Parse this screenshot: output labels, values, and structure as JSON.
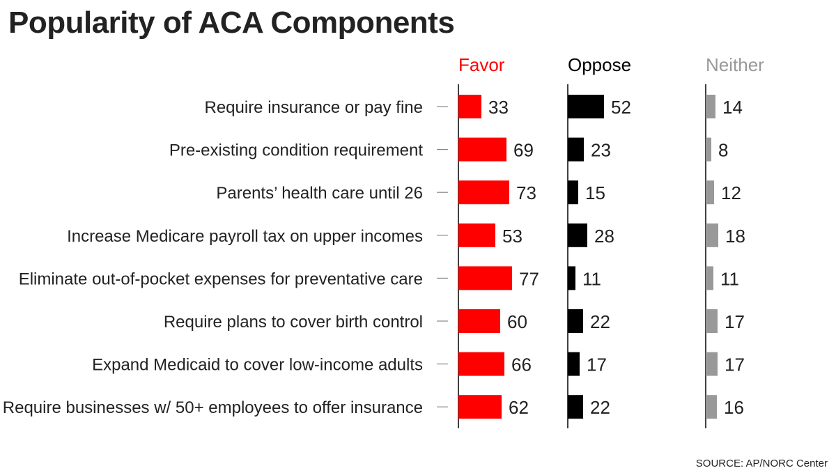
{
  "title": "Popularity of ACA Components",
  "source": "SOURCE: AP/NORC Center",
  "colors": {
    "favor": "#ff0000",
    "oppose": "#000000",
    "neither": "#999999",
    "text": "#222222",
    "tick": "#888888"
  },
  "chart_data": {
    "type": "bar",
    "title": "Popularity of ACA Components",
    "categories": [
      "Require insurance or pay fine",
      "Pre-existing condition requirement",
      "Parents’ health care until 26",
      "Increase Medicare payroll tax on upper incomes",
      "Eliminate out-of-pocket expenses for preventative care",
      "Require plans to cover birth control",
      "Expand Medicaid to cover low-income adults",
      "Require businesses w/ 50+ employees to offer insurance"
    ],
    "series": [
      {
        "name": "Favor",
        "color": "#ff0000",
        "values": [
          33,
          69,
          73,
          53,
          77,
          60,
          66,
          62
        ]
      },
      {
        "name": "Oppose",
        "color": "#000000",
        "values": [
          52,
          23,
          15,
          28,
          11,
          22,
          17,
          22
        ]
      },
      {
        "name": "Neither",
        "color": "#999999",
        "values": [
          14,
          8,
          12,
          18,
          11,
          17,
          17,
          16
        ]
      }
    ],
    "xlabel": "",
    "ylabel": "",
    "grid": false,
    "legend": "column headers above bars"
  }
}
